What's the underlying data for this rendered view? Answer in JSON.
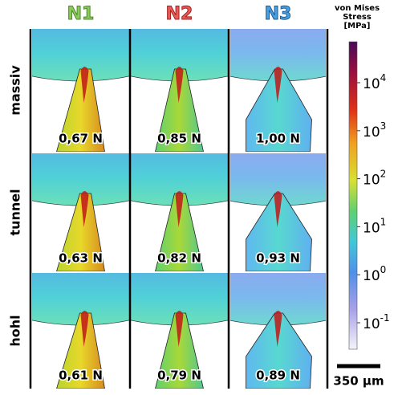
{
  "columns": [
    "N1",
    "N2",
    "N3"
  ],
  "rows": [
    {
      "label": "massiv",
      "forces": [
        "0,67 N",
        "0,85 N",
        "1,00 N"
      ]
    },
    {
      "label": "tunnel",
      "forces": [
        "0,63 N",
        "0,82 N",
        "0,93 N"
      ]
    },
    {
      "label": "hohl",
      "forces": [
        "0,61 N",
        "0,79 N",
        "0,89 N"
      ]
    }
  ],
  "colorbar": {
    "title": [
      "von Mises",
      "Stress",
      "[MPa]"
    ],
    "ticks": [
      {
        "base": "10",
        "exp": "4"
      },
      {
        "base": "10",
        "exp": "3"
      },
      {
        "base": "10",
        "exp": "2"
      },
      {
        "base": "10",
        "exp": "1"
      },
      {
        "base": "10",
        "exp": "0"
      },
      {
        "base": "10",
        "exp": "-1"
      }
    ]
  },
  "scale_bar": "350 μm"
}
